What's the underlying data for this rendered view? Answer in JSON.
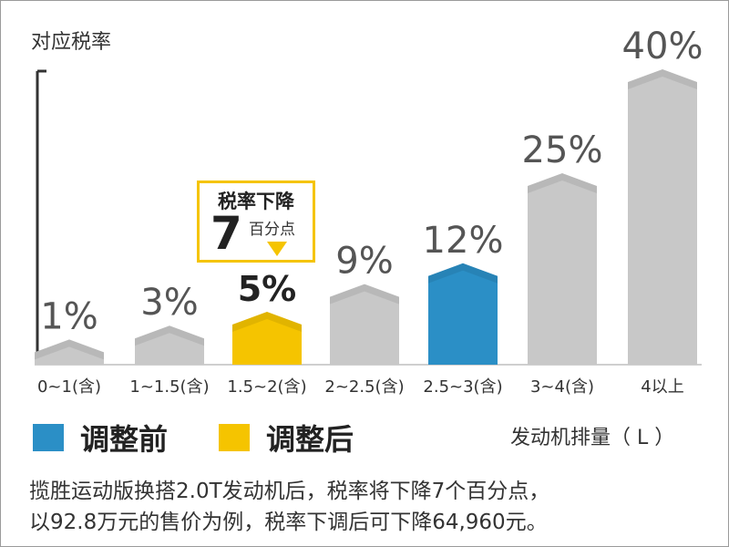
{
  "chart_data": {
    "type": "bar",
    "ylabel": "对应税率",
    "xlabel": "发动机排量（ L ）",
    "categories": [
      "0~1(含)",
      "1~1.5(含)",
      "1.5~2(含)",
      "2~2.5(含)",
      "2.5~3(含)",
      "3~4(含)",
      "4以上"
    ],
    "values": [
      1,
      3,
      5,
      9,
      12,
      25,
      40
    ],
    "value_labels": [
      "1%",
      "3%",
      "5%",
      "9%",
      "12%",
      "25%",
      "40%"
    ],
    "bar_colors": [
      "#c8c8c8",
      "#c8c8c8",
      "#f5c400",
      "#c8c8c8",
      "#2b8fc6",
      "#c8c8c8",
      "#c8c8c8"
    ],
    "highlight_index": 2,
    "ylim": [
      0,
      40
    ],
    "legend": [
      {
        "label": "调整前",
        "color": "#2b8fc6"
      },
      {
        "label": "调整后",
        "color": "#f5c400"
      }
    ],
    "annotation": {
      "title": "税率下降",
      "number": "7",
      "unit": "百分点"
    }
  },
  "caption_lines": [
    "揽胜运动版换搭2.0T发动机后，税率将下降7个百分点，",
    "以92.8万元的售价为例，税率下调后可下降64,960元。"
  ],
  "colors": {
    "default_bar": "#c8c8c8",
    "before": "#2b8fc6",
    "after": "#f5c400",
    "axis": "#333333"
  }
}
